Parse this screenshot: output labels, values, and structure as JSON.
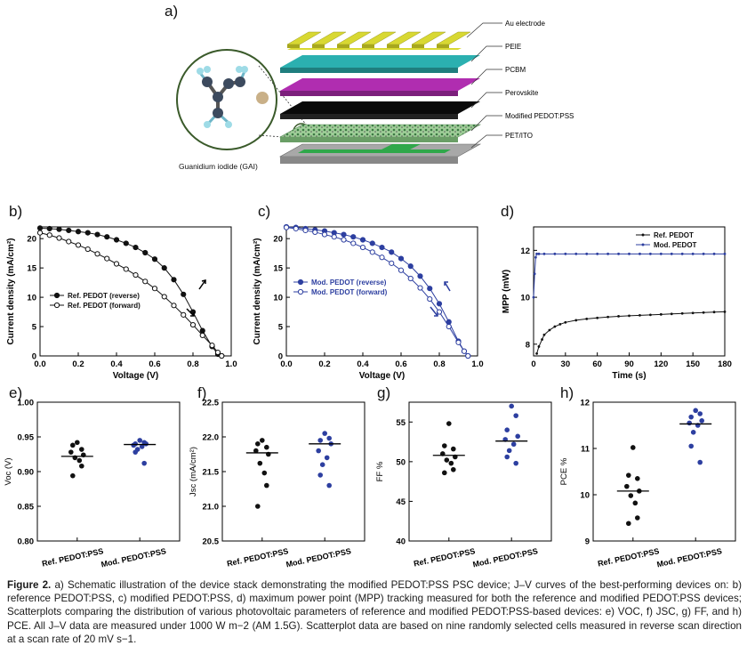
{
  "panel_labels": {
    "a": "a)",
    "b": "b)",
    "c": "c)",
    "d": "d)",
    "e": "e)",
    "f": "f)",
    "g": "g)",
    "h": "h)"
  },
  "panel_a": {
    "layers": [
      "Au electrode",
      "PEIE",
      "PCBM",
      "Perovskite",
      "Modified PEDOT:PSS",
      "PET/ITO"
    ],
    "molecule_label": "Guanidium iodide (GAI)",
    "colors": {
      "au": "#d8d832",
      "peie": "#2bb0b0",
      "pcbm": "#b02db0",
      "perovskite": "#0a0a0a",
      "pedot": "#8fc48a",
      "pet": "#a8a8a8",
      "ito": "#2fa84a"
    }
  },
  "colors": {
    "ref": "#111111",
    "mod": "#2d3fa0"
  },
  "chart_data": [
    {
      "id": "b",
      "type": "line",
      "xlabel": "Voltage (V)",
      "ylabel": "Current density (mA/cm²)",
      "xlim": [
        0.0,
        1.0
      ],
      "ylim": [
        0,
        22
      ],
      "xticks": [
        "0.0",
        "0.2",
        "0.4",
        "0.6",
        "0.8",
        "1.0"
      ],
      "yticks": [
        "0",
        "5",
        "10",
        "15",
        "20"
      ],
      "series": [
        {
          "name": "Ref. PEDOT (reverse)",
          "marker": "filled",
          "x": [
            0.0,
            0.05,
            0.1,
            0.15,
            0.2,
            0.25,
            0.3,
            0.35,
            0.4,
            0.45,
            0.5,
            0.55,
            0.6,
            0.65,
            0.7,
            0.75,
            0.8,
            0.85,
            0.9,
            0.93,
            0.95
          ],
          "y": [
            21.8,
            21.7,
            21.6,
            21.4,
            21.2,
            21.0,
            20.7,
            20.3,
            19.8,
            19.2,
            18.5,
            17.6,
            16.5,
            15.0,
            13.0,
            10.5,
            7.5,
            4.3,
            1.6,
            0.3,
            0
          ]
        },
        {
          "name": "Ref. PEDOT (forward)",
          "marker": "open",
          "x": [
            0.0,
            0.05,
            0.1,
            0.15,
            0.2,
            0.25,
            0.3,
            0.35,
            0.4,
            0.45,
            0.5,
            0.55,
            0.6,
            0.65,
            0.7,
            0.75,
            0.8,
            0.85,
            0.9,
            0.93,
            0.95
          ],
          "y": [
            21.0,
            20.6,
            20.1,
            19.5,
            18.9,
            18.2,
            17.4,
            16.6,
            15.7,
            14.8,
            13.8,
            12.7,
            11.5,
            10.1,
            8.6,
            7.0,
            5.3,
            3.5,
            1.8,
            0.6,
            0
          ]
        }
      ]
    },
    {
      "id": "c",
      "type": "line",
      "xlabel": "Voltage (V)",
      "ylabel": "Current density (mA/cm²)",
      "xlim": [
        0.0,
        1.0
      ],
      "ylim": [
        0,
        22
      ],
      "xticks": [
        "0.0",
        "0.2",
        "0.4",
        "0.6",
        "0.8",
        "1.0"
      ],
      "yticks": [
        "0",
        "5",
        "10",
        "15",
        "20"
      ],
      "series": [
        {
          "name": "Mod. PEDOT (reverse)",
          "marker": "filled",
          "x": [
            0.0,
            0.05,
            0.1,
            0.15,
            0.2,
            0.25,
            0.3,
            0.35,
            0.4,
            0.45,
            0.5,
            0.55,
            0.6,
            0.65,
            0.7,
            0.75,
            0.8,
            0.85,
            0.9,
            0.93,
            0.95
          ],
          "y": [
            22.0,
            21.9,
            21.7,
            21.5,
            21.3,
            21.0,
            20.7,
            20.3,
            19.8,
            19.2,
            18.5,
            17.7,
            16.6,
            15.3,
            13.6,
            11.5,
            8.9,
            5.8,
            2.5,
            0.8,
            0
          ]
        },
        {
          "name": "Mod. PEDOT (forward)",
          "marker": "open",
          "x": [
            0.0,
            0.05,
            0.1,
            0.15,
            0.2,
            0.25,
            0.3,
            0.35,
            0.4,
            0.45,
            0.5,
            0.55,
            0.6,
            0.65,
            0.7,
            0.75,
            0.8,
            0.85,
            0.9,
            0.93,
            0.95
          ],
          "y": [
            21.9,
            21.7,
            21.4,
            21.1,
            20.7,
            20.3,
            19.8,
            19.2,
            18.5,
            17.7,
            16.8,
            15.8,
            14.6,
            13.2,
            11.6,
            9.7,
            7.5,
            5.0,
            2.3,
            0.8,
            0
          ]
        }
      ]
    },
    {
      "id": "d",
      "type": "line",
      "xlabel": "Time (s)",
      "ylabel": "MPP (mW)",
      "xlim": [
        0,
        180
      ],
      "ylim": [
        7.5,
        13
      ],
      "xticks": [
        "0",
        "30",
        "60",
        "90",
        "120",
        "150",
        "180"
      ],
      "yticks": [
        "8",
        "10",
        "12"
      ],
      "series": [
        {
          "name": "Ref. PEDOT",
          "marker": "small",
          "x": [
            3,
            5,
            8,
            10,
            15,
            20,
            25,
            30,
            40,
            50,
            60,
            70,
            80,
            90,
            100,
            110,
            120,
            130,
            140,
            150,
            160,
            170,
            180
          ],
          "y": [
            7.6,
            7.9,
            8.2,
            8.4,
            8.6,
            8.75,
            8.85,
            8.93,
            9.02,
            9.08,
            9.12,
            9.16,
            9.19,
            9.21,
            9.23,
            9.25,
            9.27,
            9.29,
            9.31,
            9.33,
            9.35,
            9.37,
            9.38
          ]
        },
        {
          "name": "Mod. PEDOT",
          "marker": "small",
          "x": [
            0,
            1,
            2,
            3,
            5,
            10,
            20,
            30,
            40,
            50,
            60,
            70,
            80,
            90,
            100,
            110,
            120,
            130,
            140,
            150,
            160,
            170,
            180
          ],
          "y": [
            10.0,
            11.0,
            11.7,
            11.85,
            11.85,
            11.85,
            11.85,
            11.85,
            11.85,
            11.85,
            11.85,
            11.85,
            11.85,
            11.85,
            11.85,
            11.85,
            11.85,
            11.85,
            11.85,
            11.85,
            11.85,
            11.85,
            11.85
          ]
        }
      ]
    },
    {
      "id": "e",
      "type": "scatter",
      "ylabel": "Voc (V)",
      "ylim": [
        0.8,
        1.0
      ],
      "yticks": [
        "0.80",
        "0.85",
        "0.90",
        "0.95",
        "1.00"
      ],
      "categories": [
        "Ref. PEDOT:PSS",
        "Mod. PEDOT:PSS"
      ],
      "series": [
        {
          "values": [
            0.942,
            0.938,
            0.932,
            0.928,
            0.924,
            0.92,
            0.916,
            0.908,
            0.894
          ],
          "mean": 0.922
        },
        {
          "values": [
            0.945,
            0.942,
            0.94,
            0.94,
            0.938,
            0.936,
            0.932,
            0.928,
            0.912
          ],
          "mean": 0.939
        }
      ]
    },
    {
      "id": "f",
      "type": "scatter",
      "ylabel": "Jsc (mA/cm²)",
      "ylim": [
        20.5,
        22.5
      ],
      "yticks": [
        "20.5",
        "21.0",
        "21.5",
        "22.0",
        "22.5"
      ],
      "categories": [
        "Ref. PEDOT:PSS",
        "Mod. PEDOT:PSS"
      ],
      "series": [
        {
          "values": [
            21.95,
            21.9,
            21.85,
            21.8,
            21.75,
            21.62,
            21.48,
            21.3,
            21.0
          ],
          "mean": 21.77
        },
        {
          "values": [
            22.05,
            21.98,
            21.95,
            21.9,
            21.8,
            21.7,
            21.6,
            21.45,
            21.3
          ],
          "mean": 21.9
        }
      ]
    },
    {
      "id": "g",
      "type": "scatter",
      "ylabel": "FF %",
      "ylim": [
        40,
        57.5
      ],
      "yticks": [
        "40",
        "45",
        "50",
        "55"
      ],
      "categories": [
        "Ref. PEDOT:PSS",
        "Mod. PEDOT:PSS"
      ],
      "series": [
        {
          "values": [
            54.8,
            52.0,
            51.6,
            51.0,
            50.6,
            50.2,
            49.8,
            49.0,
            48.6
          ],
          "mean": 50.8
        },
        {
          "values": [
            57.0,
            55.8,
            54.0,
            53.2,
            52.8,
            52.2,
            51.4,
            50.6,
            49.8
          ],
          "mean": 52.6
        }
      ]
    },
    {
      "id": "h",
      "type": "scatter",
      "ylabel": "PCE %",
      "ylim": [
        9,
        12
      ],
      "yticks": [
        "9",
        "10",
        "11",
        "12"
      ],
      "categories": [
        "Ref. PEDOT:PSS",
        "Mod. PEDOT:PSS"
      ],
      "series": [
        {
          "values": [
            11.02,
            10.42,
            10.35,
            10.18,
            10.08,
            9.98,
            9.82,
            9.5,
            9.38
          ],
          "mean": 10.08
        },
        {
          "values": [
            11.82,
            11.75,
            11.68,
            11.6,
            11.55,
            11.5,
            11.35,
            11.05,
            10.7
          ],
          "mean": 11.53
        }
      ]
    }
  ],
  "caption": {
    "label": "Figure 2.",
    "text": "a) Schematic illustration of the device stack demonstrating the modified PEDOT:PSS PSC device; J–V curves of the best-performing devices on: b) reference PEDOT:PSS, c) modified PEDOT:PSS, d) maximum power point (MPP) tracking measured for both the reference and modified PEDOT:PSS devices; Scatterplots comparing the distribution of various photovoltaic parameters of reference and modified PEDOT:PSS-based devices: e) VOC, f) JSC, g) FF, and h) PCE. All J–V data are measured under 1000 W m−2 (AM 1.5G). Scatterplot data are based on nine randomly selected cells measured in reverse scan direction at a scan rate of 20 mV s−1."
  }
}
